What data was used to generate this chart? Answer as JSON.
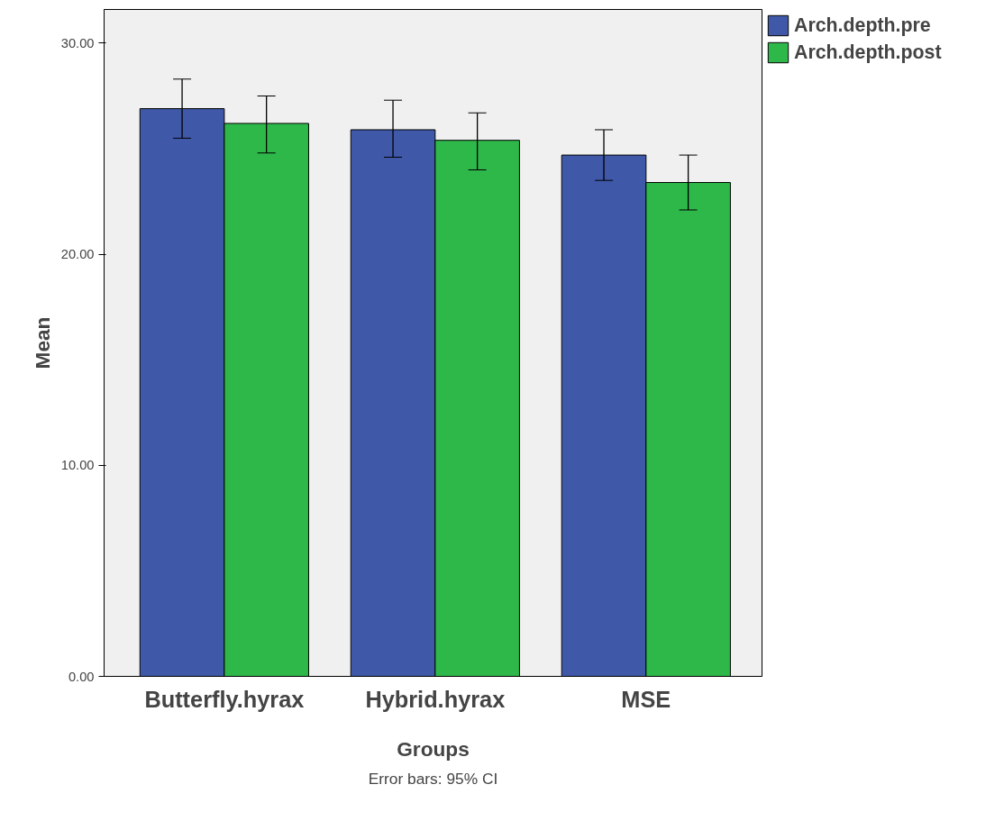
{
  "chart_data": {
    "type": "bar",
    "xlabel": "Groups",
    "ylabel": "Mean",
    "categories": [
      "Butterfly.hyrax",
      "Hybrid.hyrax",
      "MSE"
    ],
    "series": [
      {
        "name": "Arch.depth.pre",
        "color": "#3f58a8",
        "values": [
          26.9,
          25.9,
          24.7
        ],
        "errors": [
          [
            25.5,
            28.3
          ],
          [
            24.6,
            27.3
          ],
          [
            23.5,
            25.9
          ]
        ]
      },
      {
        "name": "Arch.depth.post",
        "color": "#2eb84a",
        "values": [
          26.2,
          25.4,
          23.4
        ],
        "errors": [
          [
            24.8,
            27.5
          ],
          [
            24.0,
            26.7
          ],
          [
            22.1,
            24.7
          ]
        ]
      }
    ],
    "ylim": [
      0,
      31.6
    ],
    "yticks": [
      {
        "value": 0,
        "label": "0.00"
      },
      {
        "value": 10,
        "label": "10.00"
      },
      {
        "value": 20,
        "label": "20.00"
      },
      {
        "value": 30,
        "label": "30.00"
      }
    ],
    "grid": false,
    "legend": "top right",
    "annotations": [
      "Error bars: 95% CI"
    ]
  }
}
